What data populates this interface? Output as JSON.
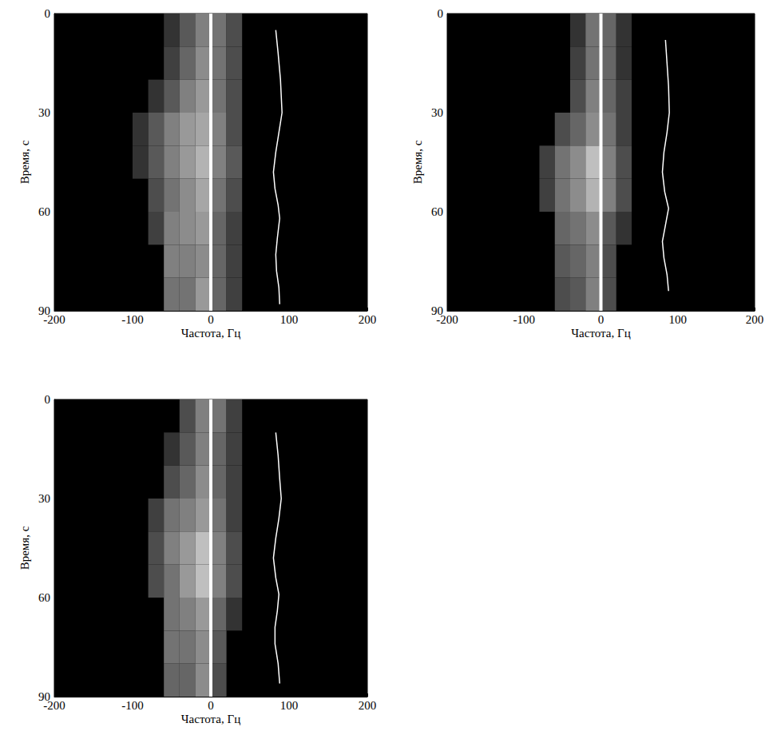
{
  "chart_data": [
    {
      "type": "heatmap",
      "xlabel": "Частота, Гц",
      "ylabel": "Время, с",
      "xlim": [
        -200,
        200
      ],
      "xticks": [
        -200,
        -100,
        0,
        100,
        200
      ],
      "ylim": [
        0,
        90
      ],
      "yticks": [
        0,
        30,
        60,
        90
      ],
      "grid": false,
      "cell_width": 20,
      "cell_height": 10,
      "zlim": [
        0,
        1
      ],
      "cells": [
        [
          -50,
          5,
          0.2
        ],
        [
          -30,
          5,
          0.35
        ],
        [
          -10,
          5,
          0.5
        ],
        [
          10,
          5,
          0.45
        ],
        [
          30,
          5,
          0.3
        ],
        [
          -50,
          15,
          0.25
        ],
        [
          -30,
          15,
          0.4
        ],
        [
          -10,
          15,
          0.55
        ],
        [
          10,
          15,
          0.45
        ],
        [
          30,
          15,
          0.3
        ],
        [
          -70,
          25,
          0.2
        ],
        [
          -50,
          25,
          0.35
        ],
        [
          -30,
          25,
          0.5
        ],
        [
          -10,
          25,
          0.6
        ],
        [
          10,
          25,
          0.45
        ],
        [
          30,
          25,
          0.3
        ],
        [
          -90,
          35,
          0.2
        ],
        [
          -70,
          35,
          0.35
        ],
        [
          -50,
          35,
          0.5
        ],
        [
          -30,
          35,
          0.6
        ],
        [
          -10,
          35,
          0.65
        ],
        [
          10,
          35,
          0.5
        ],
        [
          30,
          35,
          0.3
        ],
        [
          -90,
          45,
          0.2
        ],
        [
          -70,
          45,
          0.35
        ],
        [
          -50,
          45,
          0.5
        ],
        [
          -30,
          45,
          0.6
        ],
        [
          -10,
          45,
          0.7
        ],
        [
          10,
          45,
          0.5
        ],
        [
          30,
          45,
          0.35
        ],
        [
          -70,
          55,
          0.3
        ],
        [
          -50,
          55,
          0.45
        ],
        [
          -30,
          55,
          0.55
        ],
        [
          -10,
          55,
          0.65
        ],
        [
          10,
          55,
          0.45
        ],
        [
          30,
          55,
          0.3
        ],
        [
          -70,
          65,
          0.25
        ],
        [
          -50,
          65,
          0.5
        ],
        [
          -30,
          65,
          0.55
        ],
        [
          -10,
          65,
          0.6
        ],
        [
          10,
          65,
          0.4
        ],
        [
          30,
          65,
          0.25
        ],
        [
          -50,
          75,
          0.5
        ],
        [
          -30,
          75,
          0.5
        ],
        [
          -10,
          75,
          0.55
        ],
        [
          10,
          75,
          0.4
        ],
        [
          30,
          75,
          0.25
        ],
        [
          -50,
          85,
          0.45
        ],
        [
          -30,
          85,
          0.45
        ],
        [
          -10,
          85,
          0.6
        ],
        [
          10,
          85,
          0.4
        ],
        [
          30,
          85,
          0.25
        ]
      ],
      "series": [
        {
          "type": "line",
          "color": "#ffffff",
          "x": [
            0,
            0
          ],
          "y": [
            0,
            90
          ]
        },
        {
          "type": "line",
          "color": "#ffffff",
          "x": [
            83,
            86,
            89,
            91,
            87,
            83,
            80,
            82,
            86,
            88,
            85,
            83,
            84,
            87,
            88
          ],
          "y": [
            5,
            12,
            20,
            30,
            36,
            42,
            48,
            53,
            58,
            62,
            68,
            73,
            78,
            83,
            88
          ]
        }
      ]
    },
    {
      "type": "heatmap",
      "xlabel": "Частота, Гц",
      "ylabel": "Время, с",
      "xlim": [
        -200,
        200
      ],
      "xticks": [
        -200,
        -100,
        0,
        100,
        200
      ],
      "ylim": [
        0,
        90
      ],
      "yticks": [
        0,
        30,
        60,
        90
      ],
      "grid": false,
      "cell_width": 20,
      "cell_height": 10,
      "zlim": [
        0,
        1
      ],
      "cells": [
        [
          -30,
          5,
          0.2
        ],
        [
          -10,
          5,
          0.45
        ],
        [
          10,
          5,
          0.4
        ],
        [
          30,
          5,
          0.2
        ],
        [
          -30,
          15,
          0.25
        ],
        [
          -10,
          15,
          0.45
        ],
        [
          10,
          15,
          0.4
        ],
        [
          30,
          15,
          0.2
        ],
        [
          -30,
          25,
          0.3
        ],
        [
          -10,
          25,
          0.5
        ],
        [
          10,
          25,
          0.4
        ],
        [
          30,
          25,
          0.25
        ],
        [
          -50,
          35,
          0.3
        ],
        [
          -30,
          35,
          0.4
        ],
        [
          -10,
          35,
          0.55
        ],
        [
          10,
          35,
          0.45
        ],
        [
          30,
          35,
          0.25
        ],
        [
          -70,
          45,
          0.25
        ],
        [
          -50,
          45,
          0.45
        ],
        [
          -30,
          45,
          0.55
        ],
        [
          -10,
          45,
          0.75
        ],
        [
          10,
          45,
          0.5
        ],
        [
          30,
          45,
          0.3
        ],
        [
          -70,
          55,
          0.25
        ],
        [
          -50,
          55,
          0.45
        ],
        [
          -30,
          55,
          0.55
        ],
        [
          -10,
          55,
          0.7
        ],
        [
          10,
          55,
          0.5
        ],
        [
          30,
          55,
          0.3
        ],
        [
          -50,
          65,
          0.4
        ],
        [
          -30,
          65,
          0.45
        ],
        [
          -10,
          65,
          0.55
        ],
        [
          10,
          65,
          0.35
        ],
        [
          30,
          65,
          0.2
        ],
        [
          -50,
          75,
          0.35
        ],
        [
          -30,
          75,
          0.4
        ],
        [
          -10,
          75,
          0.5
        ],
        [
          10,
          75,
          0.3
        ],
        [
          -50,
          85,
          0.3
        ],
        [
          -30,
          85,
          0.35
        ],
        [
          -10,
          85,
          0.5
        ],
        [
          10,
          85,
          0.3
        ]
      ],
      "series": [
        {
          "type": "line",
          "color": "#ffffff",
          "x": [
            0,
            0
          ],
          "y": [
            0,
            90
          ]
        },
        {
          "type": "line",
          "color": "#ffffff",
          "x": [
            84,
            86,
            88,
            89,
            86,
            82,
            80,
            83,
            88,
            84,
            80,
            82,
            86,
            88
          ],
          "y": [
            8,
            15,
            22,
            30,
            36,
            42,
            48,
            54,
            59,
            64,
            69,
            74,
            79,
            84
          ]
        }
      ]
    },
    {
      "type": "heatmap",
      "xlabel": "Частота, Гц",
      "ylabel": "Время, с",
      "xlim": [
        -200,
        200
      ],
      "xticks": [
        -200,
        -100,
        0,
        100,
        200
      ],
      "ylim": [
        0,
        90
      ],
      "yticks": [
        0,
        30,
        60,
        90
      ],
      "grid": false,
      "cell_width": 20,
      "cell_height": 10,
      "zlim": [
        0,
        1
      ],
      "cells": [
        [
          -30,
          5,
          0.3
        ],
        [
          -10,
          5,
          0.5
        ],
        [
          10,
          5,
          0.45
        ],
        [
          30,
          5,
          0.25
        ],
        [
          -50,
          15,
          0.2
        ],
        [
          -30,
          15,
          0.35
        ],
        [
          -10,
          15,
          0.5
        ],
        [
          10,
          15,
          0.4
        ],
        [
          30,
          15,
          0.25
        ],
        [
          -50,
          25,
          0.3
        ],
        [
          -30,
          25,
          0.4
        ],
        [
          -10,
          25,
          0.55
        ],
        [
          10,
          25,
          0.4
        ],
        [
          30,
          25,
          0.25
        ],
        [
          -70,
          35,
          0.25
        ],
        [
          -50,
          35,
          0.45
        ],
        [
          -30,
          35,
          0.5
        ],
        [
          -10,
          35,
          0.6
        ],
        [
          10,
          35,
          0.45
        ],
        [
          30,
          35,
          0.25
        ],
        [
          -70,
          45,
          0.3
        ],
        [
          -50,
          45,
          0.5
        ],
        [
          -30,
          45,
          0.6
        ],
        [
          -10,
          45,
          0.75
        ],
        [
          10,
          45,
          0.5
        ],
        [
          30,
          45,
          0.3
        ],
        [
          -70,
          55,
          0.3
        ],
        [
          -50,
          55,
          0.45
        ],
        [
          -30,
          55,
          0.6
        ],
        [
          -10,
          55,
          0.75
        ],
        [
          10,
          55,
          0.5
        ],
        [
          30,
          55,
          0.3
        ],
        [
          -50,
          65,
          0.45
        ],
        [
          -30,
          65,
          0.5
        ],
        [
          -10,
          65,
          0.6
        ],
        [
          10,
          65,
          0.4
        ],
        [
          30,
          65,
          0.2
        ],
        [
          -50,
          75,
          0.45
        ],
        [
          -30,
          75,
          0.45
        ],
        [
          -10,
          75,
          0.55
        ],
        [
          10,
          75,
          0.35
        ],
        [
          -50,
          85,
          0.4
        ],
        [
          -30,
          85,
          0.4
        ],
        [
          -10,
          85,
          0.55
        ],
        [
          10,
          85,
          0.3
        ]
      ],
      "series": [
        {
          "type": "line",
          "color": "#ffffff",
          "x": [
            0,
            0
          ],
          "y": [
            0,
            90
          ]
        },
        {
          "type": "line",
          "color": "#ffffff",
          "x": [
            83,
            86,
            88,
            90,
            87,
            83,
            80,
            83,
            87,
            85,
            82,
            82,
            86,
            88
          ],
          "y": [
            10,
            17,
            24,
            30,
            36,
            42,
            48,
            54,
            59,
            64,
            69,
            74,
            80,
            86
          ]
        }
      ]
    }
  ]
}
